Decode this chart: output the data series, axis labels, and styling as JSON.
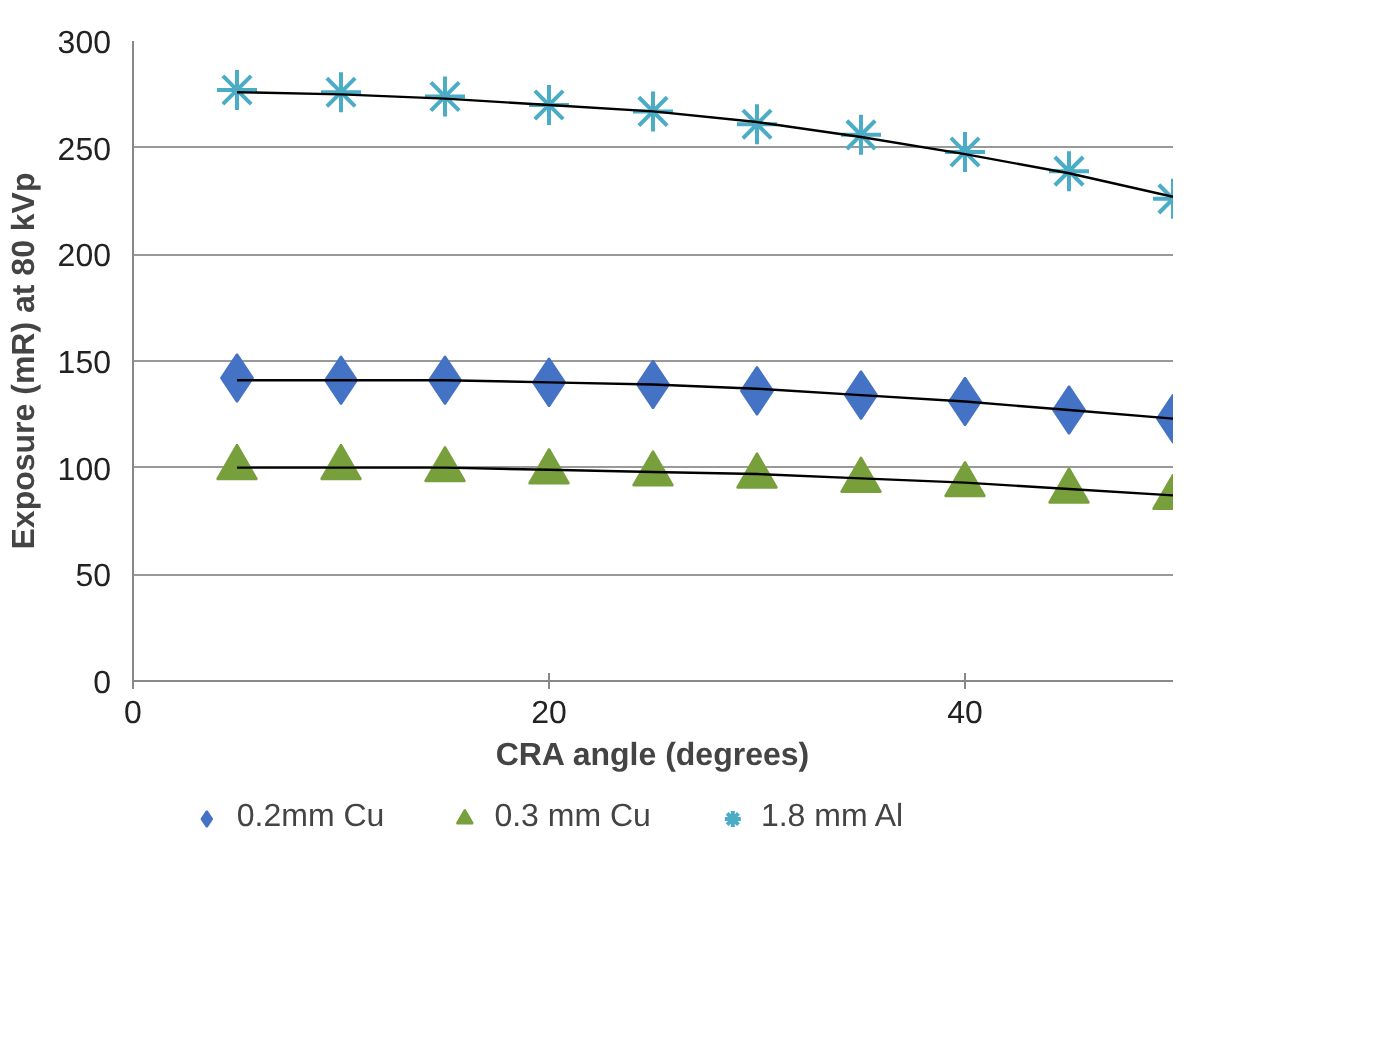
{
  "chart_data": {
    "type": "scatter",
    "xlabel": "CRA angle (degrees)",
    "ylabel": "Exposure (mR) at 80 kVp",
    "x": [
      5,
      10,
      15,
      20,
      25,
      30,
      35,
      40,
      45,
      50
    ],
    "xlim": [
      0,
      50
    ],
    "xticks": [
      0,
      20,
      40
    ],
    "ylim": [
      0,
      300
    ],
    "yticks": [
      0,
      50,
      100,
      150,
      200,
      250,
      300
    ],
    "grid": "y",
    "legend": "bottom",
    "series": [
      {
        "name": "0.2mm Cu",
        "color": "#4472c4",
        "marker": "diamond",
        "values": [
          142,
          141,
          141,
          140,
          139,
          136,
          134,
          131,
          127,
          123
        ]
      },
      {
        "name": "0.3 mm Cu",
        "color": "#77a03c",
        "marker": "triangle",
        "values": [
          100,
          100,
          99,
          98,
          97,
          96,
          94,
          92,
          89,
          86
        ]
      },
      {
        "name": "1.8 mm Al",
        "color": "#4bacc6",
        "marker": "cross",
        "values": [
          277,
          276,
          274,
          270,
          267,
          261,
          256,
          248,
          239,
          226
        ]
      },
      {
        "type": "line",
        "color": "#000000",
        "values": [
          141,
          141,
          141,
          140,
          139,
          137,
          134,
          131,
          127,
          123
        ]
      },
      {
        "type": "line",
        "color": "#000000",
        "values": [
          100,
          100,
          100,
          99,
          98,
          97,
          95,
          93,
          90,
          87
        ]
      },
      {
        "type": "line",
        "color": "#000000",
        "values": [
          276,
          275,
          273,
          270,
          267,
          262,
          255,
          247,
          238,
          227
        ]
      }
    ]
  }
}
